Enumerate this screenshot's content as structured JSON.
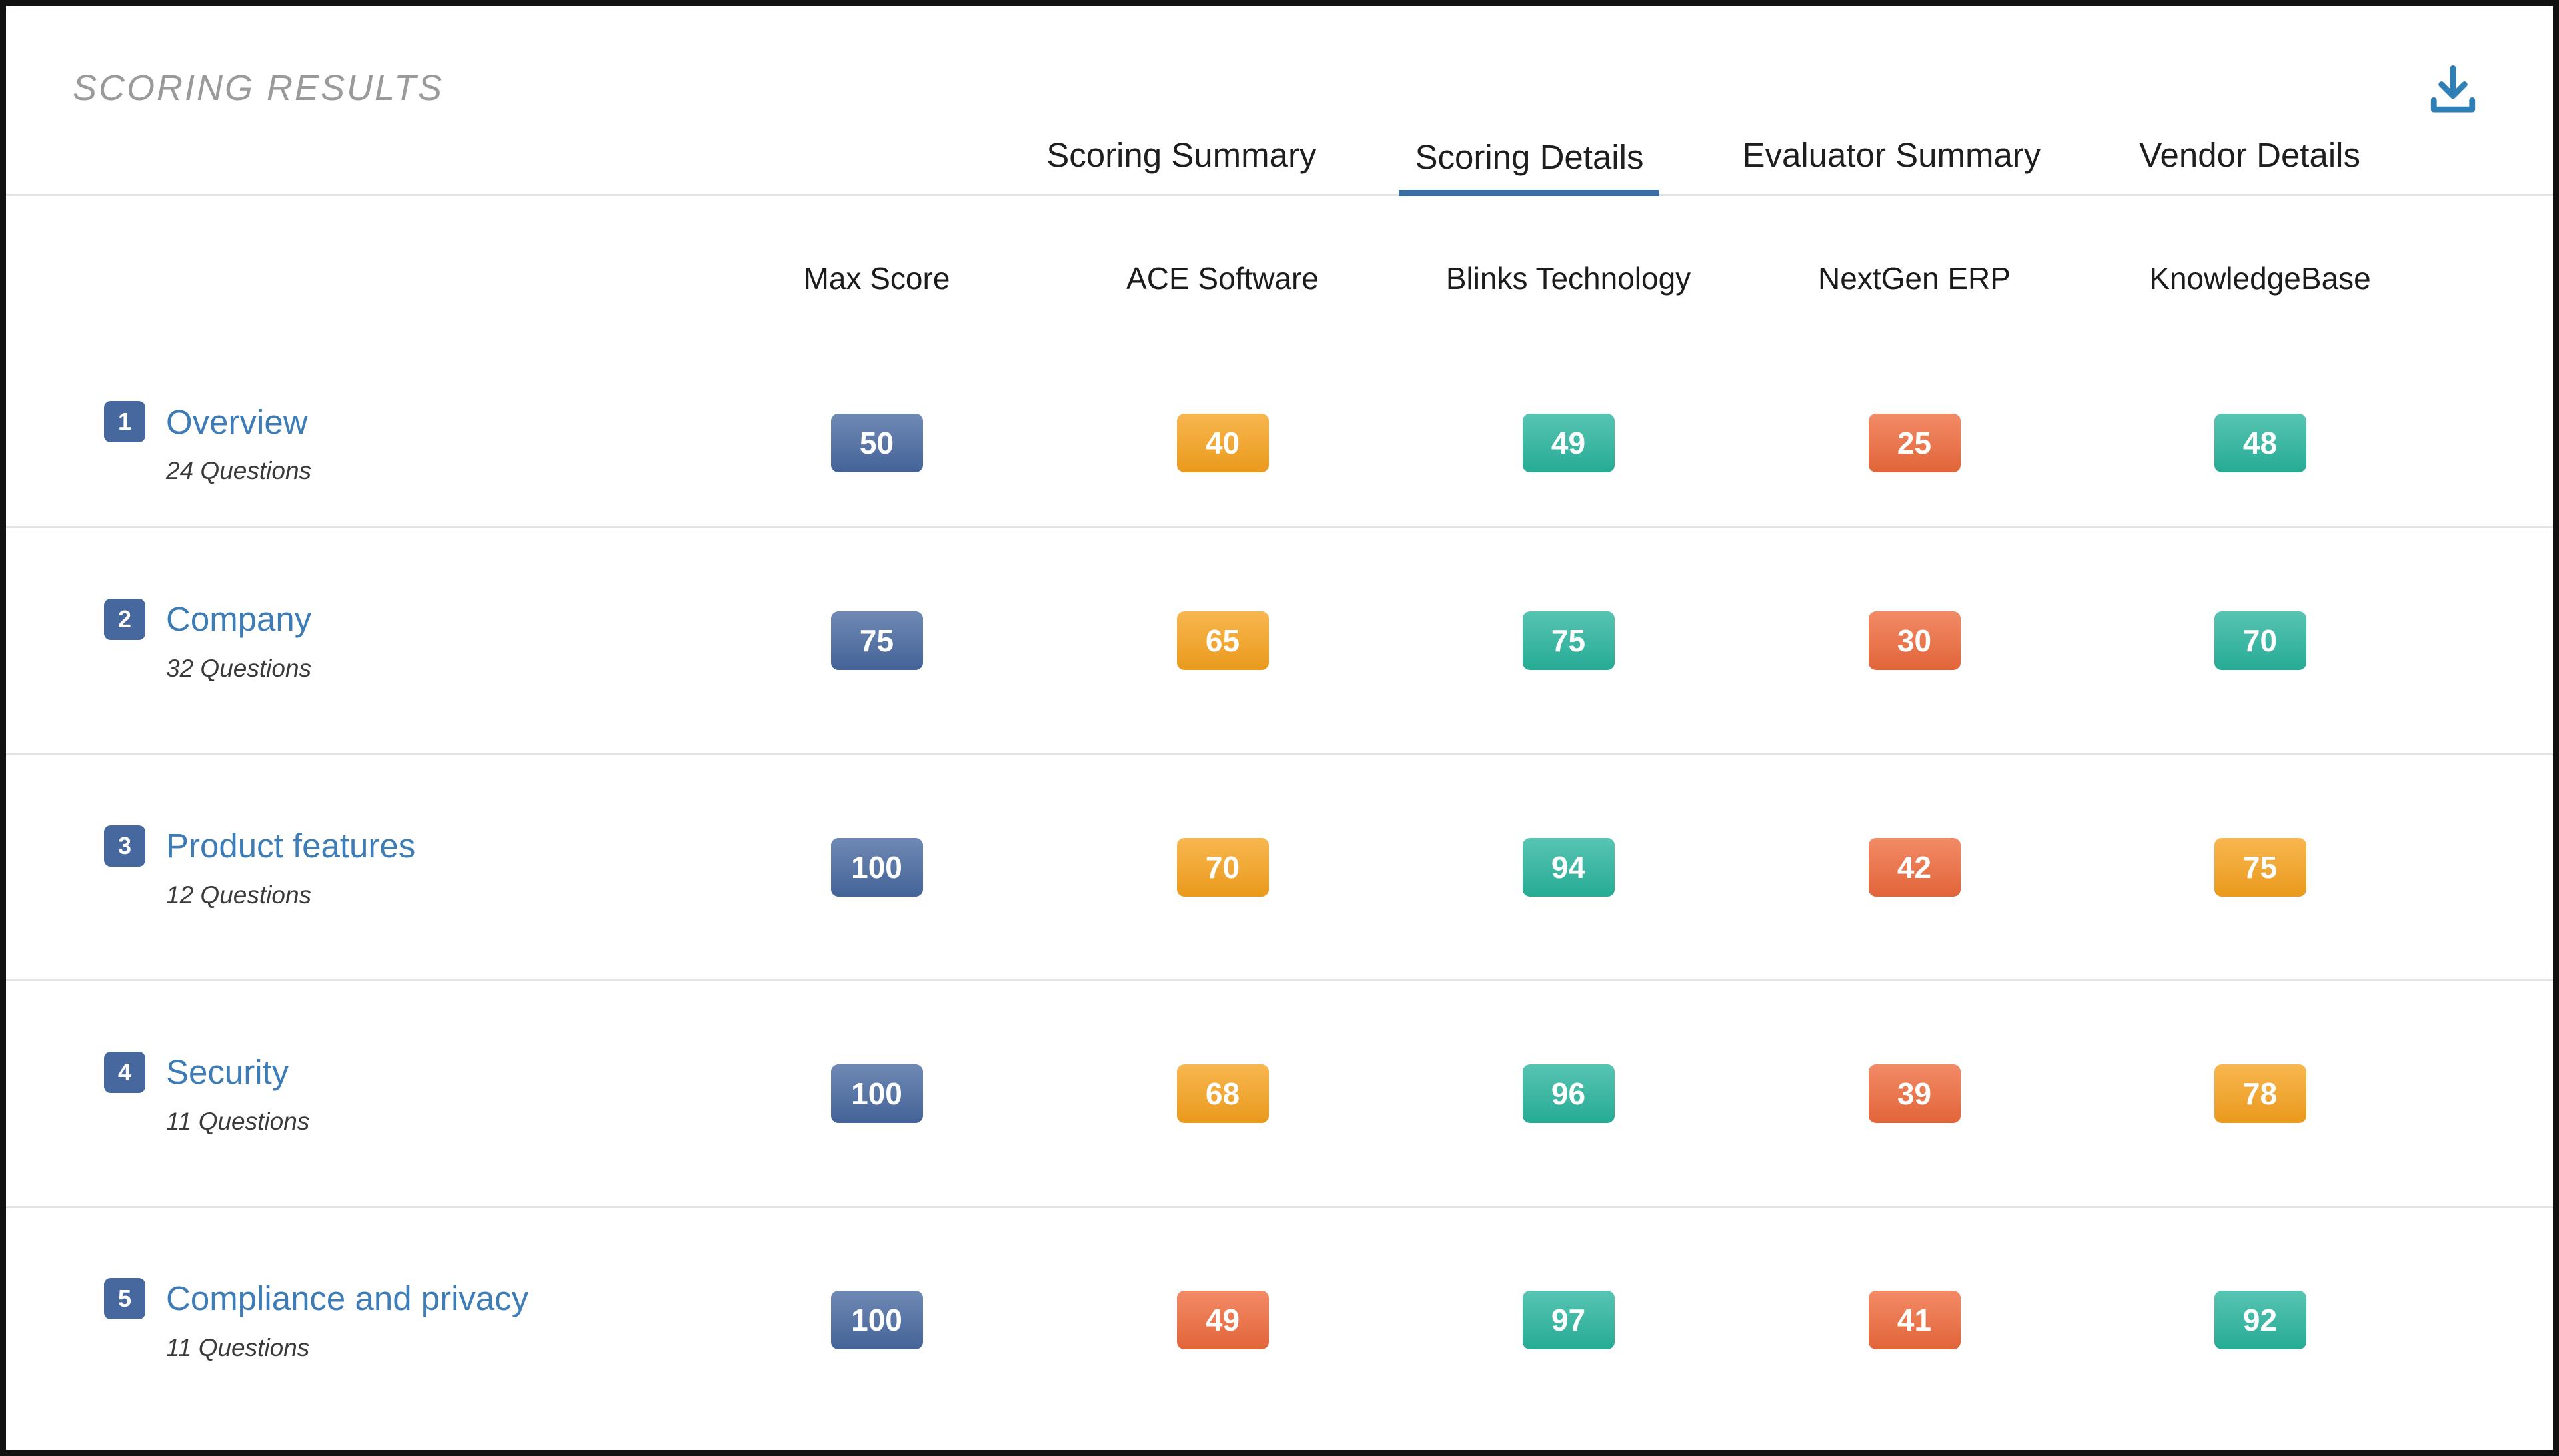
{
  "header": {
    "title": "SCORING RESULTS"
  },
  "tabs": [
    {
      "label": "Scoring Summary",
      "active": false
    },
    {
      "label": "Scoring Details",
      "active": true
    },
    {
      "label": "Evaluator Summary",
      "active": false
    },
    {
      "label": "Vendor Details",
      "active": false
    }
  ],
  "table": {
    "columns": [
      "Max Score",
      "ACE Software",
      "Blinks Technology",
      "NextGen ERP",
      "KnowledgeBase"
    ],
    "rows": [
      {
        "num": "1",
        "category": "Overview",
        "questions": "24 Questions",
        "scores": [
          {
            "value": "50",
            "color": "blue"
          },
          {
            "value": "40",
            "color": "amber"
          },
          {
            "value": "49",
            "color": "teal"
          },
          {
            "value": "25",
            "color": "orange"
          },
          {
            "value": "48",
            "color": "teal"
          }
        ]
      },
      {
        "num": "2",
        "category": "Company",
        "questions": "32 Questions",
        "scores": [
          {
            "value": "75",
            "color": "blue"
          },
          {
            "value": "65",
            "color": "amber"
          },
          {
            "value": "75",
            "color": "teal"
          },
          {
            "value": "30",
            "color": "orange"
          },
          {
            "value": "70",
            "color": "teal"
          }
        ]
      },
      {
        "num": "3",
        "category": "Product features",
        "questions": "12 Questions",
        "scores": [
          {
            "value": "100",
            "color": "blue"
          },
          {
            "value": "70",
            "color": "amber"
          },
          {
            "value": "94",
            "color": "teal"
          },
          {
            "value": "42",
            "color": "orange"
          },
          {
            "value": "75",
            "color": "amber"
          }
        ]
      },
      {
        "num": "4",
        "category": "Security",
        "questions": "11 Questions",
        "scores": [
          {
            "value": "100",
            "color": "blue"
          },
          {
            "value": "68",
            "color": "amber"
          },
          {
            "value": "96",
            "color": "teal"
          },
          {
            "value": "39",
            "color": "orange"
          },
          {
            "value": "78",
            "color": "amber"
          }
        ]
      },
      {
        "num": "5",
        "category": "Compliance and privacy",
        "questions": "11 Questions",
        "scores": [
          {
            "value": "100",
            "color": "blue"
          },
          {
            "value": "49",
            "color": "orange"
          },
          {
            "value": "97",
            "color": "teal"
          },
          {
            "value": "41",
            "color": "orange"
          },
          {
            "value": "92",
            "color": "teal"
          }
        ]
      }
    ]
  },
  "icons": {
    "download": "download-icon"
  },
  "colors": {
    "accent": "#3a6ea5",
    "link": "#3d7cb7",
    "icon": "#2e7fb6",
    "title": "#9a9a9a",
    "divider": "#e3e3e3",
    "blue": "#47689f",
    "amber": "#f6a21e",
    "teal": "#28b49d",
    "orange": "#ee6a3c"
  }
}
